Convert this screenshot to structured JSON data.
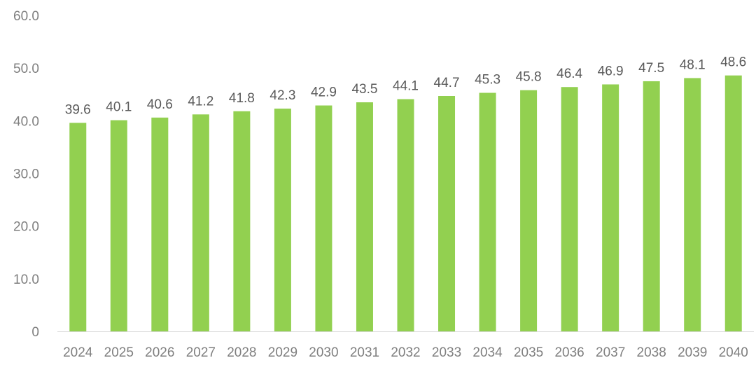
{
  "chart_data": {
    "type": "bar",
    "categories": [
      "2024",
      "2025",
      "2026",
      "2027",
      "2028",
      "2029",
      "2030",
      "2031",
      "2032",
      "2033",
      "2034",
      "2035",
      "2036",
      "2037",
      "2038",
      "2039",
      "2040"
    ],
    "values": [
      39.6,
      40.1,
      40.6,
      41.2,
      41.8,
      42.3,
      42.9,
      43.5,
      44.1,
      44.7,
      45.3,
      45.8,
      46.4,
      46.9,
      47.5,
      48.1,
      48.6
    ],
    "title": "",
    "xlabel": "",
    "ylabel": "",
    "ylim": [
      0,
      60
    ],
    "yticks": [
      "0",
      "10.0",
      "20.0",
      "30.0",
      "40.0",
      "50.0",
      "60.0"
    ],
    "ytick_values": [
      0,
      10,
      20,
      30,
      40,
      50,
      60
    ],
    "data_labels": [
      "39.6",
      "40.1",
      "40.6",
      "41.2",
      "41.8",
      "42.3",
      "42.9",
      "43.5",
      "44.1",
      "44.7",
      "45.3",
      "45.8",
      "46.4",
      "46.9",
      "47.5",
      "48.1",
      "48.6"
    ],
    "grid": false,
    "legend": "none",
    "colors": {
      "bar": "#92d050",
      "axis_line": "#d9d9d9",
      "tick_text": "#7f7f7f",
      "data_label_text": "#595959"
    }
  }
}
